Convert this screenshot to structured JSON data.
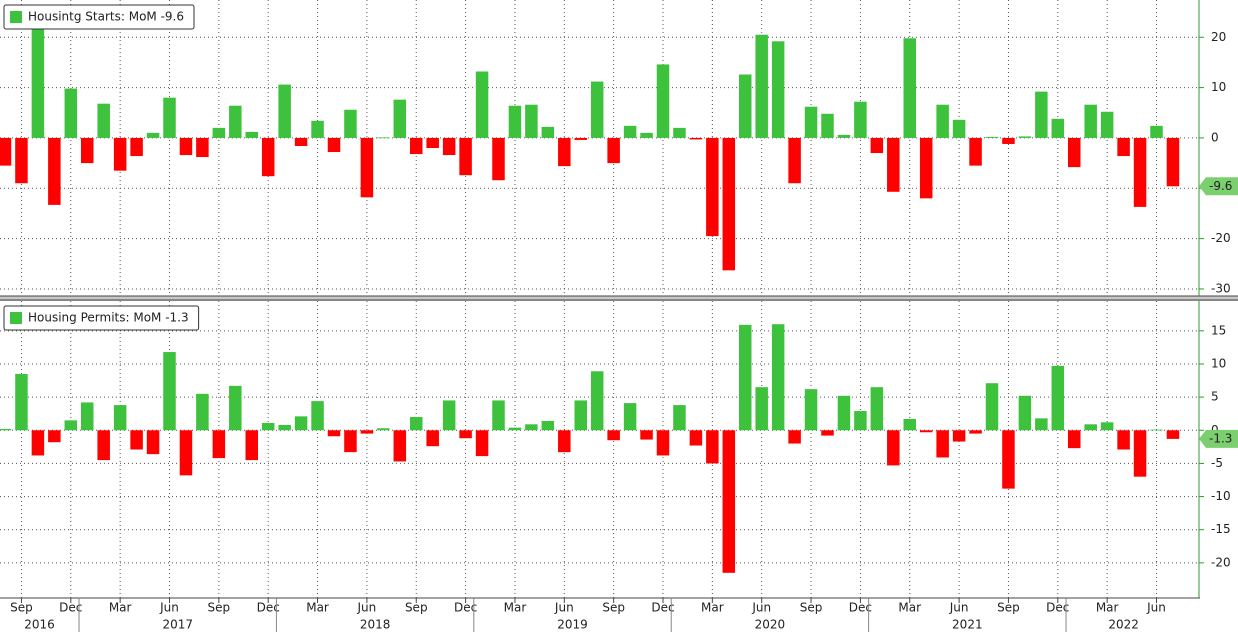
{
  "chart_data": [
    {
      "type": "bar",
      "series": [
        {
          "name": "Housintg Starts: MoM -9.6",
          "values": [
            -5.5,
            -9,
            22,
            -13.3,
            9.8,
            -5,
            6.8,
            -6.5,
            -3.6,
            1,
            8,
            -3.4,
            -3.8,
            2,
            6.4,
            1.2,
            -7.6,
            10.6,
            -1.6,
            3.4,
            -2.8,
            5.6,
            -11.8,
            0.1,
            7.6,
            -3.2,
            -2,
            -3.4,
            -7.4,
            13.2,
            -8.4,
            6.4,
            6.6,
            2.2,
            -5.6,
            -0.4,
            11.2,
            -5,
            2.4,
            1,
            14.6,
            2,
            -0.3,
            -19.5,
            -26.3,
            12.6,
            20.5,
            19.2,
            -9,
            6.2,
            4.8,
            0.6,
            7.2,
            -3,
            -10.7,
            19.8,
            -12,
            6.6,
            3.6,
            -5.5,
            0.2,
            -1.2,
            0.3,
            9.2,
            3.8,
            -5.8,
            6.6,
            5.2,
            -3.6,
            -13.7,
            2.4,
            -9.6
          ]
        }
      ],
      "positive_color": "#3ec23e",
      "negative_color": "#ff0000",
      "ylim": [
        -31.4,
        27.4
      ],
      "yticks": [
        20,
        10,
        0,
        -10,
        -20,
        -30
      ],
      "grid": true,
      "legend": "top-left"
    },
    {
      "type": "bar",
      "series": [
        {
          "name": "Housing Permits: MoM -1.3",
          "values": [
            0.2,
            8.5,
            -3.8,
            -1.8,
            1.5,
            4.2,
            -4.5,
            3.8,
            -2.9,
            -3.6,
            11.8,
            -6.8,
            5.5,
            -4.2,
            6.7,
            -4.5,
            1.1,
            0.8,
            2.1,
            4.4,
            -0.9,
            -3.3,
            -0.5,
            0.3,
            -4.7,
            2,
            -2.4,
            4.5,
            -1.2,
            -3.9,
            4.5,
            0.4,
            0.9,
            1.4,
            -3.3,
            4.5,
            8.9,
            -1.5,
            4.1,
            -1.4,
            -3.8,
            3.8,
            -2.3,
            -5,
            -21.5,
            15.9,
            6.5,
            16,
            -2,
            6.2,
            -0.8,
            5.2,
            2.9,
            6.5,
            -5.3,
            1.7,
            -0.3,
            -4.1,
            -1.7,
            -0.5,
            7.1,
            -8.8,
            5.2,
            1.8,
            9.7,
            -2.7,
            0.9,
            1.2,
            -2.9,
            -7,
            0.1,
            -1.3
          ]
        }
      ],
      "positive_color": "#3ec23e",
      "negative_color": "#ff0000",
      "ylim": [
        -25.3,
        19.5
      ],
      "yticks": [
        15,
        10,
        5,
        0,
        -5,
        -10,
        -15,
        -20
      ],
      "grid": true,
      "legend": "top-left",
      "categories": [
        null,
        "Sep",
        null,
        null,
        "Dec",
        null,
        null,
        "Mar",
        null,
        null,
        "Jun",
        null,
        null,
        "Sep",
        null,
        null,
        "Dec",
        null,
        null,
        "Mar",
        null,
        null,
        "Jun",
        null,
        null,
        "Sep",
        null,
        null,
        "Dec",
        null,
        null,
        "Mar",
        null,
        null,
        "Jun",
        null,
        null,
        "Sep",
        null,
        null,
        "Dec",
        null,
        null,
        "Mar",
        null,
        null,
        "Jun",
        null,
        null,
        "Sep",
        null,
        null,
        "Dec",
        null,
        null,
        "Mar",
        null,
        null,
        "Jun",
        null,
        null,
        "Sep",
        null,
        null,
        "Dec",
        null,
        null,
        "Mar",
        null,
        null,
        "Jun",
        null
      ],
      "year_groups": [
        {
          "year": "2016",
          "months": 5
        },
        {
          "year": "2017",
          "months": 12
        },
        {
          "year": "2018",
          "months": 12
        },
        {
          "year": "2019",
          "months": 12
        },
        {
          "year": "2020",
          "months": 12
        },
        {
          "year": "2021",
          "months": 12
        },
        {
          "year": "2022",
          "months": 7
        }
      ]
    }
  ]
}
